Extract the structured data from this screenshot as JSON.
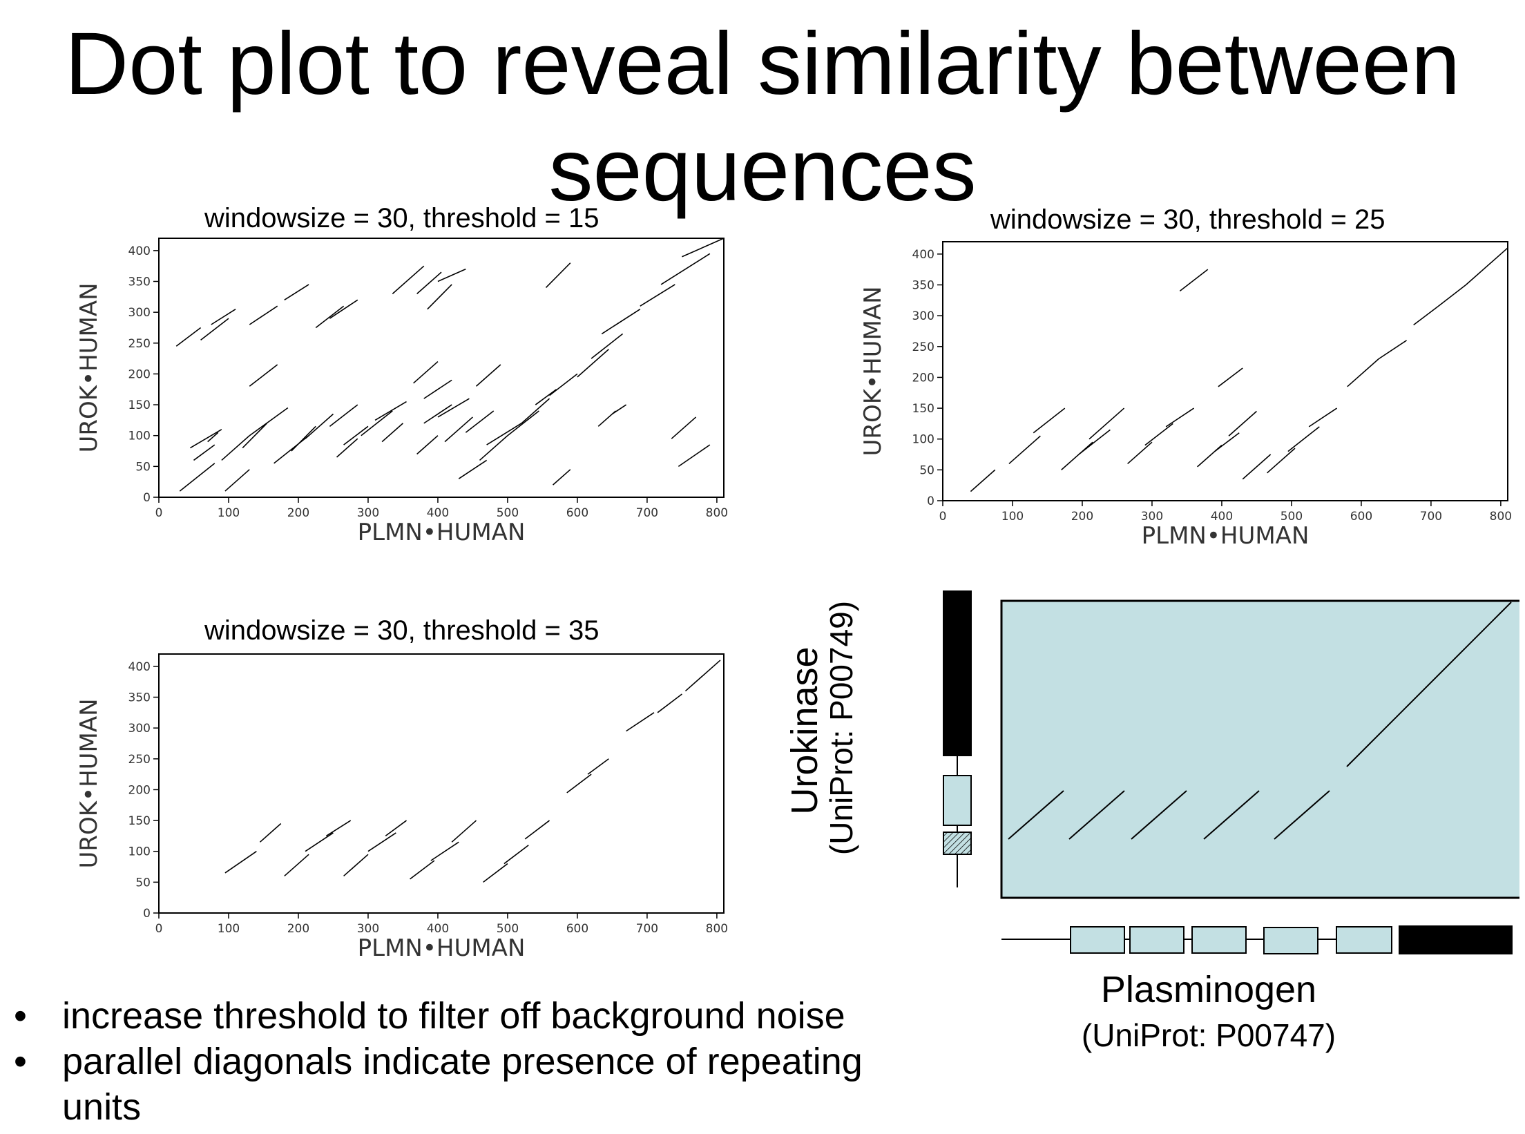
{
  "slide": {
    "title_line1": "Dot plot to reveal similarity between",
    "title_line2": "sequences",
    "bullets": [
      "increase threshold to filter off background noise",
      "parallel diagonals indicate presence of repeating units"
    ]
  },
  "dot_plots": [
    {
      "title": "windowsize = 30, threshold = 15",
      "xlabel": "PLMN•HUMAN",
      "ylabel": "UROK•HUMAN",
      "xlim": [
        0,
        810
      ],
      "ylim": [
        0,
        420
      ],
      "xticks": [
        0,
        100,
        200,
        300,
        400,
        500,
        600,
        700,
        800
      ],
      "yticks": [
        0,
        50,
        100,
        150,
        200,
        250,
        300,
        350,
        400
      ],
      "segments": [
        [
          30,
          10,
          80,
          55
        ],
        [
          95,
          10,
          130,
          45
        ],
        [
          50,
          60,
          80,
          85
        ],
        [
          45,
          80,
          90,
          110
        ],
        [
          70,
          90,
          85,
          105
        ],
        [
          90,
          60,
          130,
          100
        ],
        [
          120,
          80,
          155,
          120
        ],
        [
          130,
          100,
          185,
          145
        ],
        [
          165,
          55,
          215,
          100
        ],
        [
          190,
          75,
          225,
          115
        ],
        [
          210,
          95,
          250,
          135
        ],
        [
          245,
          115,
          285,
          150
        ],
        [
          255,
          65,
          285,
          95
        ],
        [
          265,
          85,
          300,
          115
        ],
        [
          290,
          100,
          335,
          140
        ],
        [
          310,
          125,
          355,
          155
        ],
        [
          320,
          90,
          350,
          120
        ],
        [
          370,
          70,
          400,
          100
        ],
        [
          380,
          120,
          420,
          150
        ],
        [
          400,
          130,
          445,
          160
        ],
        [
          410,
          90,
          450,
          130
        ],
        [
          430,
          30,
          470,
          60
        ],
        [
          440,
          105,
          480,
          140
        ],
        [
          460,
          60,
          500,
          100
        ],
        [
          470,
          85,
          520,
          120
        ],
        [
          500,
          100,
          545,
          140
        ],
        [
          520,
          120,
          560,
          160
        ],
        [
          540,
          150,
          570,
          175
        ],
        [
          560,
          165,
          600,
          200
        ],
        [
          600,
          195,
          645,
          240
        ],
        [
          620,
          225,
          665,
          265
        ],
        [
          635,
          265,
          690,
          305
        ],
        [
          690,
          310,
          740,
          345
        ],
        [
          720,
          345,
          790,
          395
        ],
        [
          750,
          390,
          810,
          420
        ],
        [
          565,
          20,
          590,
          45
        ],
        [
          630,
          115,
          655,
          140
        ],
        [
          650,
          135,
          670,
          150
        ],
        [
          735,
          95,
          770,
          130
        ],
        [
          745,
          50,
          790,
          85
        ],
        [
          25,
          245,
          60,
          275
        ],
        [
          60,
          255,
          100,
          290
        ],
        [
          75,
          280,
          110,
          305
        ],
        [
          130,
          280,
          170,
          310
        ],
        [
          180,
          320,
          215,
          345
        ],
        [
          225,
          275,
          265,
          310
        ],
        [
          245,
          290,
          285,
          320
        ],
        [
          130,
          180,
          170,
          215
        ],
        [
          365,
          185,
          400,
          220
        ],
        [
          380,
          160,
          420,
          190
        ],
        [
          455,
          180,
          490,
          215
        ],
        [
          335,
          330,
          380,
          375
        ],
        [
          370,
          330,
          405,
          365
        ],
        [
          385,
          305,
          420,
          345
        ],
        [
          400,
          350,
          440,
          370
        ],
        [
          555,
          340,
          590,
          380
        ]
      ]
    },
    {
      "title": "windowsize = 30, threshold = 25",
      "xlabel": "PLMN•HUMAN",
      "ylabel": "UROK•HUMAN",
      "xlim": [
        0,
        810
      ],
      "ylim": [
        0,
        420
      ],
      "xticks": [
        0,
        100,
        200,
        300,
        400,
        500,
        600,
        700,
        800
      ],
      "yticks": [
        0,
        50,
        100,
        150,
        200,
        250,
        300,
        350,
        400
      ],
      "segments": [
        [
          40,
          15,
          75,
          50
        ],
        [
          95,
          60,
          140,
          105
        ],
        [
          130,
          110,
          175,
          150
        ],
        [
          170,
          50,
          215,
          95
        ],
        [
          195,
          75,
          240,
          115
        ],
        [
          210,
          100,
          260,
          150
        ],
        [
          265,
          60,
          300,
          95
        ],
        [
          290,
          90,
          330,
          125
        ],
        [
          320,
          120,
          360,
          150
        ],
        [
          365,
          55,
          400,
          90
        ],
        [
          390,
          80,
          425,
          110
        ],
        [
          410,
          105,
          450,
          145
        ],
        [
          430,
          35,
          470,
          75
        ],
        [
          465,
          45,
          505,
          85
        ],
        [
          495,
          80,
          540,
          120
        ],
        [
          525,
          120,
          565,
          150
        ],
        [
          580,
          185,
          625,
          230
        ],
        [
          625,
          230,
          665,
          260
        ],
        [
          675,
          285,
          710,
          315
        ],
        [
          710,
          315,
          750,
          350
        ],
        [
          750,
          350,
          810,
          410
        ],
        [
          340,
          340,
          380,
          375
        ],
        [
          395,
          185,
          430,
          215
        ]
      ]
    },
    {
      "title": "windowsize = 30, threshold = 35",
      "xlabel": "PLMN•HUMAN",
      "ylabel": "UROK•HUMAN",
      "xlim": [
        0,
        810
      ],
      "ylim": [
        0,
        420
      ],
      "xticks": [
        0,
        100,
        200,
        300,
        400,
        500,
        600,
        700,
        800
      ],
      "yticks": [
        0,
        50,
        100,
        150,
        200,
        250,
        300,
        350,
        400
      ],
      "segments": [
        [
          95,
          65,
          140,
          100
        ],
        [
          145,
          115,
          175,
          145
        ],
        [
          180,
          60,
          215,
          95
        ],
        [
          210,
          100,
          250,
          130
        ],
        [
          240,
          125,
          275,
          150
        ],
        [
          265,
          60,
          300,
          95
        ],
        [
          300,
          100,
          340,
          130
        ],
        [
          325,
          125,
          355,
          150
        ],
        [
          360,
          55,
          395,
          85
        ],
        [
          390,
          85,
          430,
          115
        ],
        [
          420,
          115,
          455,
          150
        ],
        [
          465,
          50,
          500,
          80
        ],
        [
          495,
          80,
          530,
          110
        ],
        [
          525,
          120,
          560,
          150
        ],
        [
          585,
          195,
          620,
          225
        ],
        [
          615,
          225,
          645,
          250
        ],
        [
          670,
          295,
          710,
          325
        ],
        [
          715,
          325,
          750,
          355
        ],
        [
          755,
          360,
          805,
          410
        ]
      ]
    }
  ],
  "schematic": {
    "x_protein": "Plasminogen",
    "x_id": "(UniProt: P00747)",
    "y_protein": "Urokinase",
    "y_id": "(UniProt: P00749)"
  },
  "colors": {
    "domain_fill": "#c3e0e3",
    "protease_domain": "#000000",
    "ink": "#000000"
  }
}
